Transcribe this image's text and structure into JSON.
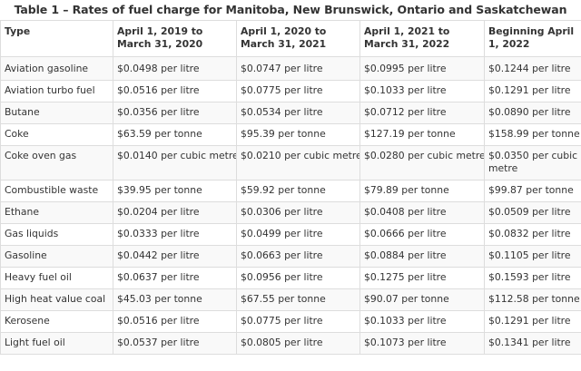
{
  "title": "Table 1 – Rates of fuel charge for Manitoba, New Brunswick, Ontario and Saskatchewan",
  "headers": [
    "Type",
    "April 1, 2019 to March 31, 2020",
    "April 1, 2020 to March 31, 2021",
    "April 1, 2021 to March 31, 2022",
    "Beginning April 1, 2022"
  ],
  "rows": [
    [
      "Aviation gasoline",
      "$0.0498 per litre",
      "$0.0747 per litre",
      "$0.0995 per litre",
      "$0.1244 per litre"
    ],
    [
      "Aviation turbo fuel",
      "$0.0516 per litre",
      "$0.0775 per litre",
      "$0.1033 per litre",
      "$0.1291 per litre"
    ],
    [
      "Butane",
      "$0.0356 per litre",
      "$0.0534 per litre",
      "$0.0712 per litre",
      "$0.0890 per litre"
    ],
    [
      "Coke",
      "$63.59 per tonne",
      "$95.39 per tonne",
      "$127.19 per tonne",
      "$158.99 per tonne"
    ],
    [
      "Coke oven gas",
      "$0.0140 per cubic metre",
      "$0.0210 per cubic metre",
      "$0.0280 per cubic metre",
      "$0.0350 per cubic metre"
    ],
    [
      "Combustible waste",
      "$39.95 per tonne",
      "$59.92 per tonne",
      "$79.89 per tonne",
      "$99.87 per tonne"
    ],
    [
      "Ethane",
      "$0.0204 per litre",
      "$0.0306 per litre",
      "$0.0408 per litre",
      "$0.0509 per litre"
    ],
    [
      "Gas liquids",
      "$0.0333 per litre",
      "$0.0499 per litre",
      "$0.0666 per litre",
      "$0.0832 per litre"
    ],
    [
      "Gasoline",
      "$0.0442 per litre",
      "$0.0663 per litre",
      "$0.0884 per litre",
      "$0.1105 per litre"
    ],
    [
      "Heavy fuel oil",
      "$0.0637 per litre",
      "$0.0956 per litre",
      "$0.1275 per litre",
      "$0.1593 per litre"
    ],
    [
      "High heat value coal",
      "$45.03 per tonne",
      "$67.55 per tonne",
      "$90.07 per tonne",
      "$112.58 per tonne"
    ],
    [
      "Kerosene",
      "$0.0516 per litre",
      "$0.0775 per litre",
      "$0.1033 per litre",
      "$0.1291 per litre"
    ],
    [
      "Light fuel oil",
      "$0.0537 per litre",
      "$0.0805 per litre",
      "$0.1073 per litre",
      "$0.1341 per litre"
    ]
  ]
}
